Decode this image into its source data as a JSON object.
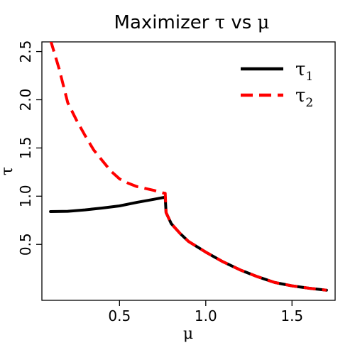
{
  "chart_data": {
    "type": "line",
    "title": "Maximizer τ vs μ",
    "title_parts": {
      "prefix": "Maximizer ",
      "sym1": "τ",
      "mid": " vs ",
      "sym2": "μ"
    },
    "xlabel": "μ",
    "ylabel": "τ",
    "xlim": [
      0.05,
      1.75
    ],
    "ylim": [
      -0.08,
      2.6
    ],
    "x_ticks": [
      0.5,
      1.0,
      1.5
    ],
    "x_tick_labels": [
      "0.5",
      "1.0",
      "1.5"
    ],
    "y_ticks": [
      0.5,
      1.0,
      1.5,
      2.0,
      2.5
    ],
    "y_tick_labels": [
      "0.5",
      "1.0",
      "1.5",
      "2.0",
      "2.5"
    ],
    "grid": false,
    "legend_position": "top-right",
    "series": [
      {
        "name": "τ",
        "subscript": "1",
        "color": "#000000",
        "style": "solid",
        "x": [
          0.1,
          0.2,
          0.3,
          0.4,
          0.5,
          0.6,
          0.7,
          0.75,
          0.765,
          0.77,
          0.8,
          0.85,
          0.9,
          1.0,
          1.1,
          1.2,
          1.3,
          1.4,
          1.5,
          1.6,
          1.7
        ],
        "y": [
          0.84,
          0.843,
          0.858,
          0.877,
          0.899,
          0.935,
          0.968,
          0.985,
          0.99,
          0.83,
          0.715,
          0.615,
          0.53,
          0.42,
          0.32,
          0.235,
          0.165,
          0.105,
          0.07,
          0.045,
          0.025
        ]
      },
      {
        "name": "τ",
        "subscript": "2",
        "color": "#ff0000",
        "style": "dashed",
        "x": [
          0.1,
          0.15,
          0.2,
          0.25,
          0.3,
          0.35,
          0.4,
          0.45,
          0.5,
          0.55,
          0.6,
          0.65,
          0.7,
          0.75,
          0.765,
          0.77,
          0.8,
          0.85,
          0.9,
          1.0,
          1.1,
          1.2,
          1.3,
          1.4,
          1.5,
          1.6,
          1.7
        ],
        "y": [
          2.62,
          2.32,
          1.97,
          1.79,
          1.63,
          1.48,
          1.37,
          1.26,
          1.18,
          1.135,
          1.1,
          1.08,
          1.06,
          1.035,
          1.03,
          0.83,
          0.715,
          0.615,
          0.53,
          0.42,
          0.32,
          0.235,
          0.165,
          0.105,
          0.07,
          0.045,
          0.025
        ]
      }
    ]
  }
}
